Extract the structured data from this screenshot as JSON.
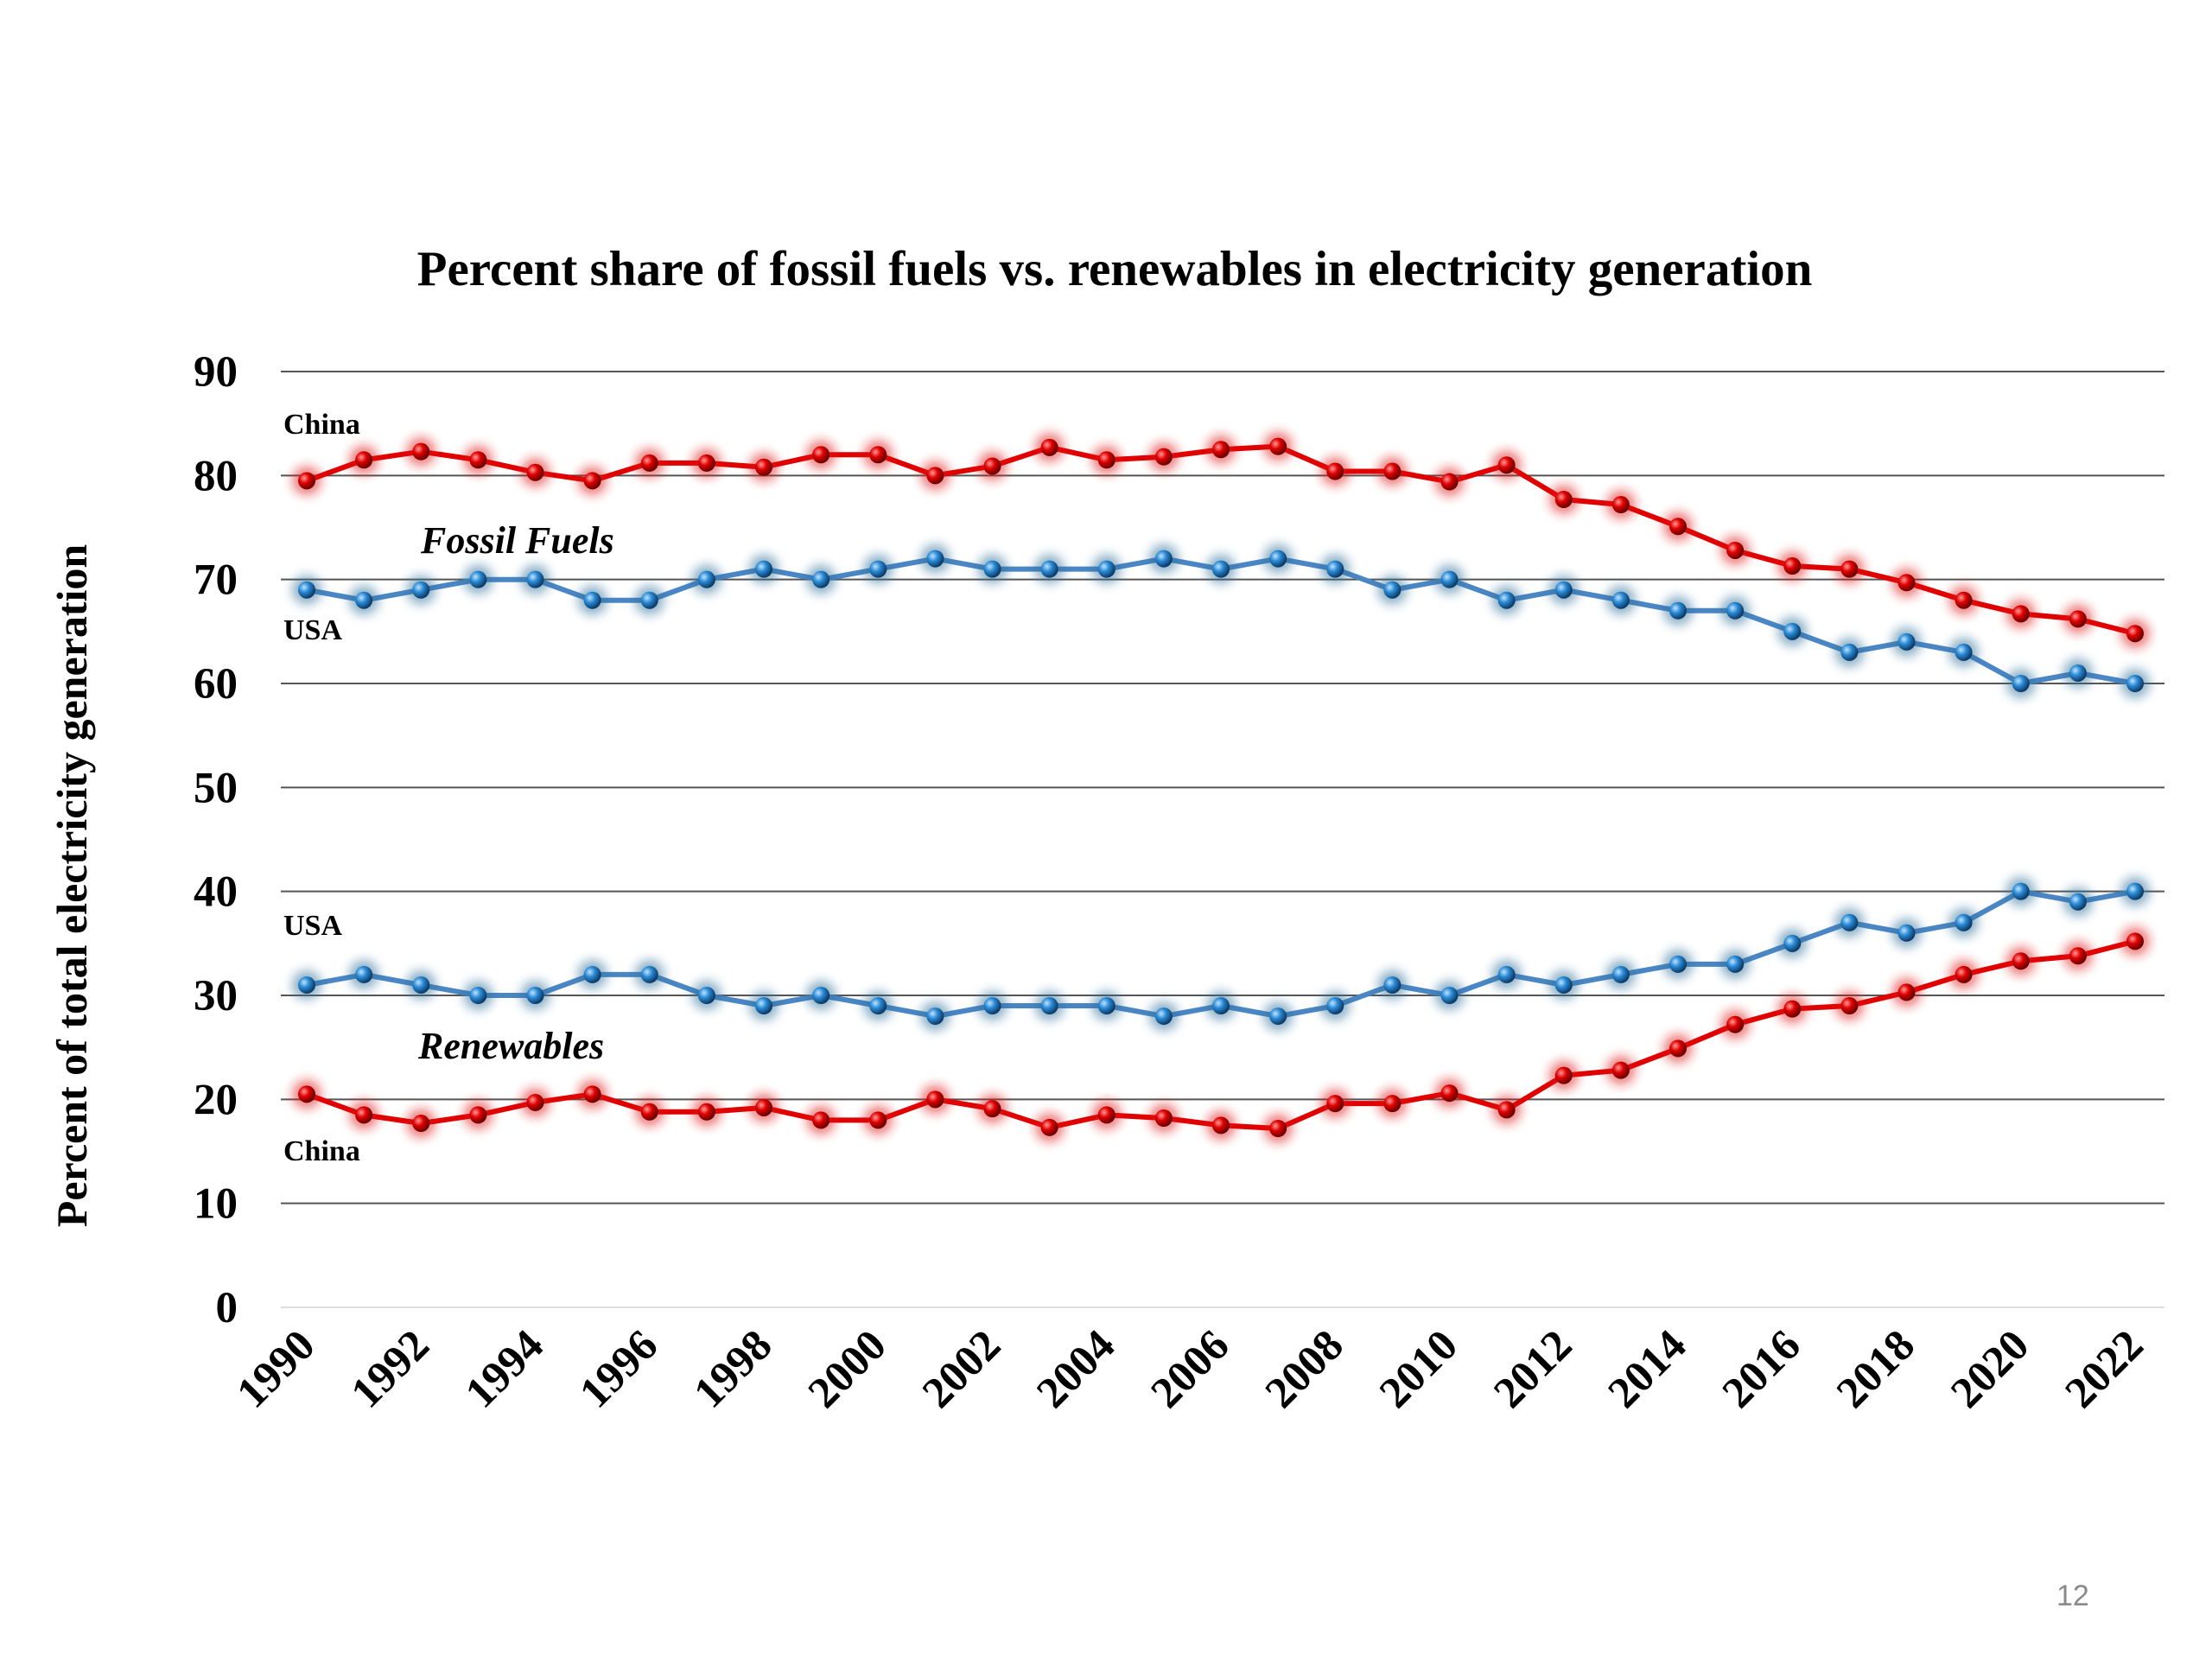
{
  "slide_number": "12",
  "colors": {
    "usa": "#4a86c5",
    "china": "#e00000",
    "grid": "#555555"
  },
  "chart_data": {
    "type": "line",
    "title": "Percent share of fossil fuels vs. renewables in electricity generation",
    "ylabel": "Percent of total electricity generation",
    "xlabel": "",
    "ylim": [
      0,
      90
    ],
    "yticks": [
      "0",
      "10",
      "20",
      "30",
      "40",
      "50",
      "60",
      "70",
      "80",
      "90"
    ],
    "xtick_labels": [
      "1990",
      "1992",
      "1994",
      "1996",
      "1998",
      "2000",
      "2002",
      "2004",
      "2006",
      "2008",
      "2010",
      "2012",
      "2014",
      "2016",
      "2018",
      "2020",
      "2022"
    ],
    "grid": true,
    "legend": "none",
    "x": [
      1990,
      1991,
      1992,
      1993,
      1994,
      1995,
      1996,
      1997,
      1998,
      1999,
      2000,
      2001,
      2002,
      2003,
      2004,
      2005,
      2006,
      2007,
      2008,
      2009,
      2010,
      2011,
      2012,
      2013,
      2014,
      2015,
      2016,
      2017,
      2018,
      2019,
      2020,
      2021,
      2022
    ],
    "annotations": {
      "fossil_group": "Fossil Fuels",
      "renewables_group": "Renewables",
      "china_fossil": "China",
      "usa_fossil": "USA",
      "usa_renewables": "USA",
      "china_renewables": "China"
    },
    "series": [
      {
        "group": "Fossil Fuels",
        "country": "China",
        "color": "#e00000",
        "values": [
          79.5,
          81.5,
          82.3,
          81.5,
          80.3,
          79.5,
          81.2,
          81.2,
          80.8,
          82,
          82,
          80,
          80.9,
          82.7,
          81.5,
          81.8,
          82.5,
          82.8,
          80.4,
          80.4,
          79.4,
          81,
          77.7,
          77.2,
          75.1,
          72.8,
          71.3,
          71,
          69.7,
          68,
          66.7,
          66.2,
          64.8
        ]
      },
      {
        "group": "Fossil Fuels",
        "country": "USA",
        "color": "#4a86c5",
        "values": [
          69,
          68,
          69,
          70,
          70,
          68,
          68,
          70,
          71,
          70,
          71,
          72,
          71,
          71,
          71,
          72,
          71,
          72,
          71,
          69,
          70,
          68,
          69,
          68,
          67,
          67,
          65,
          63,
          64,
          63,
          60,
          61,
          60
        ]
      },
      {
        "group": "Renewables",
        "country": "USA",
        "color": "#4a86c5",
        "values": [
          31,
          32,
          31,
          30,
          30,
          32,
          32,
          30,
          29,
          30,
          29,
          28,
          29,
          29,
          29,
          28,
          29,
          28,
          29,
          31,
          30,
          32,
          31,
          32,
          33,
          33,
          35,
          37,
          36,
          37,
          40,
          39,
          40
        ]
      },
      {
        "group": "Renewables",
        "country": "China",
        "color": "#e00000",
        "values": [
          20.5,
          18.5,
          17.7,
          18.5,
          19.7,
          20.5,
          18.8,
          18.8,
          19.2,
          18,
          18,
          20,
          19.1,
          17.3,
          18.5,
          18.2,
          17.5,
          17.2,
          19.6,
          19.6,
          20.6,
          19,
          22.3,
          22.8,
          24.9,
          27.2,
          28.7,
          29,
          30.3,
          32,
          33.3,
          33.8,
          35.2
        ]
      }
    ]
  }
}
